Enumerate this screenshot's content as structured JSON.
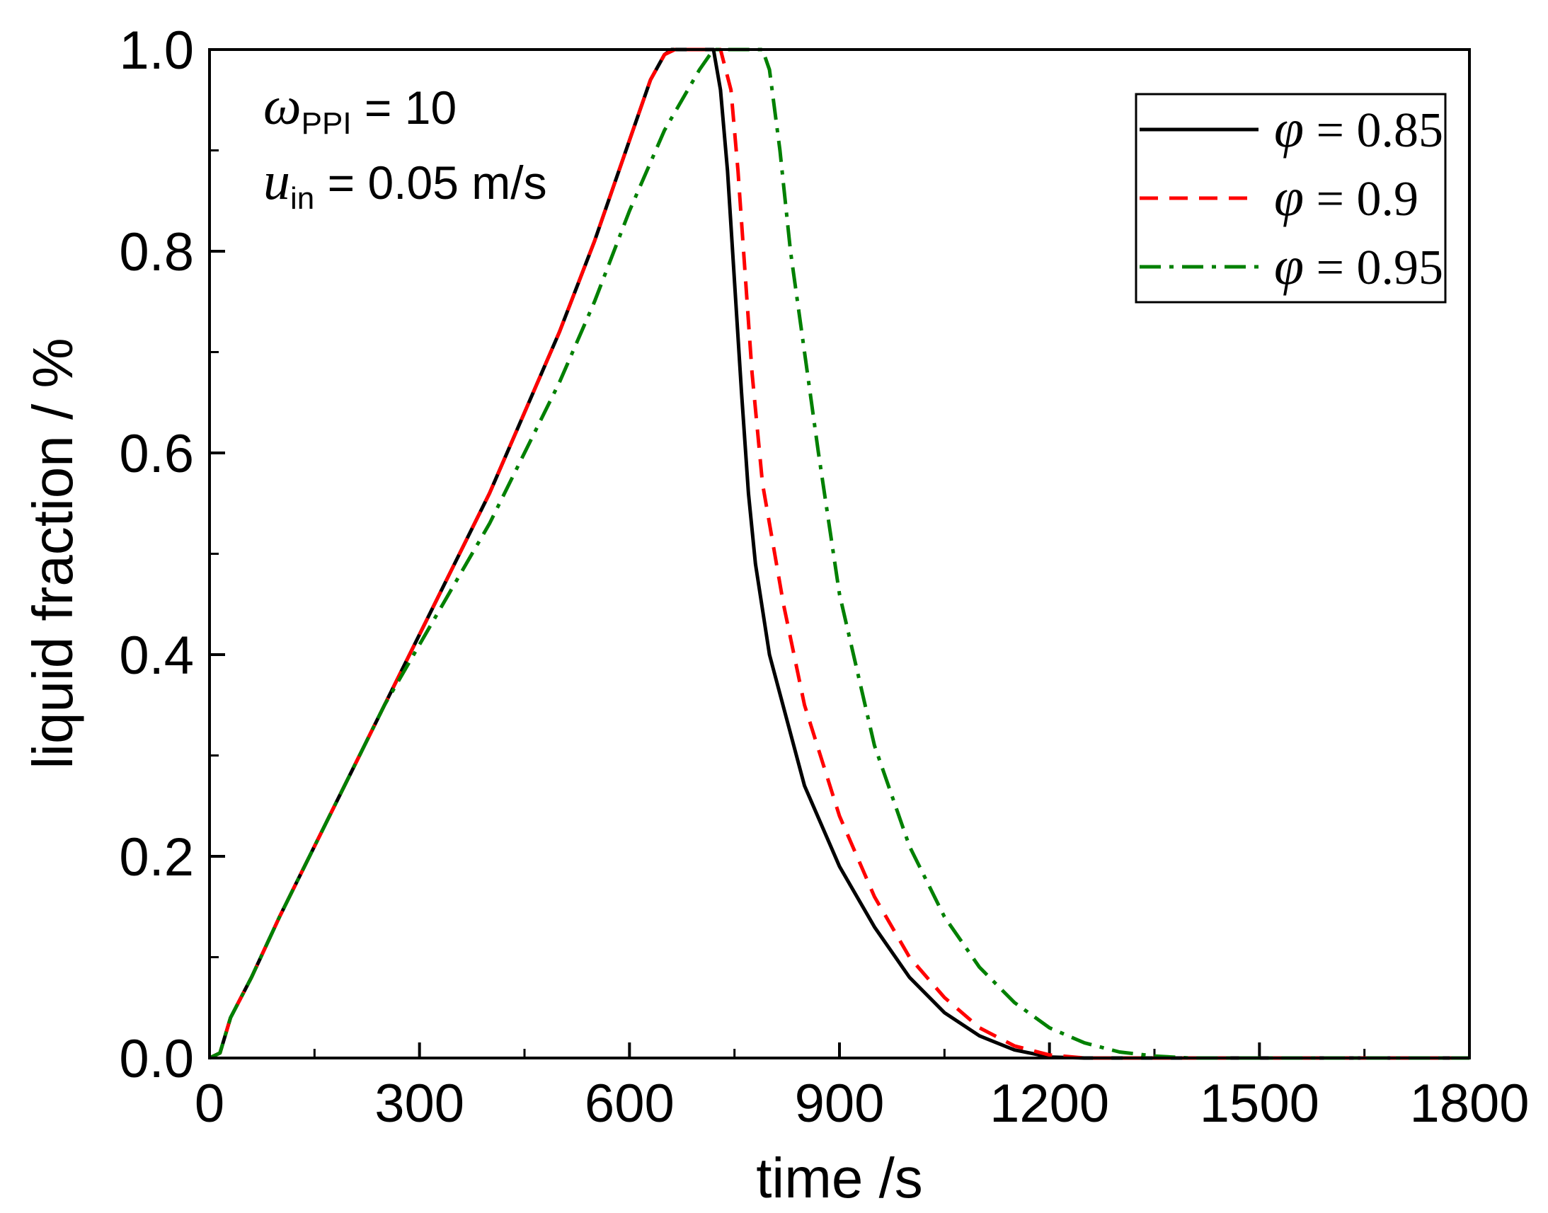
{
  "chart_data": {
    "type": "line",
    "title": "",
    "xlabel": "time /s",
    "ylabel": "liquid fraction / %",
    "xlim": [
      0,
      1800
    ],
    "ylim": [
      0,
      1.0
    ],
    "xticks": [
      0,
      300,
      600,
      900,
      1200,
      1500,
      1800
    ],
    "xtick_labels": [
      "0",
      "300",
      "600",
      "900",
      "1200",
      "1500",
      "1800"
    ],
    "yticks": [
      0,
      0.2,
      0.4,
      0.6,
      0.8,
      1.0
    ],
    "ytick_labels": [
      "0.0",
      "0.2",
      "0.4",
      "0.6",
      "0.8",
      "1.0"
    ],
    "grid": false,
    "legend_position": "top-right",
    "annotations": {
      "line1": {
        "symbol": "ω",
        "sub": "PPI",
        "rest": " = 10"
      },
      "line2": {
        "symbol": "u",
        "sub": "in",
        "rest": " = 0.05 m/s"
      }
    },
    "series": [
      {
        "name": "φ = 0.85",
        "symbol": "φ",
        "eq": " = 0.85",
        "color": "#000000",
        "dash": "solid",
        "x": [
          0,
          15,
          30,
          60,
          100,
          150,
          200,
          250,
          300,
          350,
          400,
          450,
          500,
          550,
          600,
          630,
          650,
          660,
          700,
          720,
          730,
          740,
          750,
          760,
          770,
          780,
          800,
          850,
          900,
          950,
          1000,
          1050,
          1100,
          1150,
          1200,
          1250,
          1300,
          1800
        ],
        "y": [
          0,
          0.005,
          0.04,
          0.08,
          0.14,
          0.21,
          0.28,
          0.35,
          0.42,
          0.49,
          0.56,
          0.64,
          0.72,
          0.81,
          0.91,
          0.97,
          0.995,
          1.0,
          1.0,
          1.0,
          0.96,
          0.88,
          0.77,
          0.66,
          0.56,
          0.49,
          0.4,
          0.27,
          0.19,
          0.13,
          0.08,
          0.045,
          0.022,
          0.008,
          0.001,
          0,
          0,
          0
        ]
      },
      {
        "name": "φ = 0.9",
        "symbol": "φ",
        "eq": " = 0.9",
        "color": "#ff0000",
        "dash": "dashed",
        "x": [
          0,
          15,
          30,
          60,
          100,
          150,
          200,
          250,
          300,
          350,
          400,
          450,
          500,
          550,
          600,
          630,
          650,
          665,
          700,
          730,
          745,
          755,
          765,
          775,
          790,
          820,
          850,
          900,
          950,
          1000,
          1050,
          1100,
          1150,
          1200,
          1250,
          1300,
          1800
        ],
        "y": [
          0,
          0.005,
          0.04,
          0.08,
          0.14,
          0.21,
          0.28,
          0.35,
          0.42,
          0.49,
          0.56,
          0.64,
          0.72,
          0.81,
          0.91,
          0.97,
          0.995,
          1.0,
          1.0,
          1.0,
          0.96,
          0.88,
          0.78,
          0.68,
          0.57,
          0.45,
          0.35,
          0.24,
          0.16,
          0.1,
          0.06,
          0.03,
          0.012,
          0.003,
          0,
          0,
          0
        ]
      },
      {
        "name": "φ = 0.95",
        "symbol": "φ",
        "eq": " = 0.95",
        "color": "#008000",
        "dash": "dashdot",
        "x": [
          0,
          15,
          30,
          60,
          100,
          150,
          200,
          250,
          300,
          350,
          400,
          450,
          500,
          550,
          600,
          650,
          700,
          720,
          760,
          790,
          800,
          815,
          830,
          850,
          870,
          900,
          950,
          1000,
          1050,
          1100,
          1150,
          1200,
          1250,
          1300,
          1350,
          1400,
          1800
        ],
        "y": [
          0,
          0.005,
          0.04,
          0.08,
          0.14,
          0.21,
          0.28,
          0.35,
          0.41,
          0.47,
          0.53,
          0.6,
          0.67,
          0.75,
          0.84,
          0.92,
          0.98,
          1.0,
          1.0,
          1.0,
          0.98,
          0.9,
          0.8,
          0.7,
          0.6,
          0.46,
          0.31,
          0.21,
          0.14,
          0.09,
          0.055,
          0.03,
          0.015,
          0.006,
          0.002,
          0,
          0
        ]
      }
    ]
  }
}
